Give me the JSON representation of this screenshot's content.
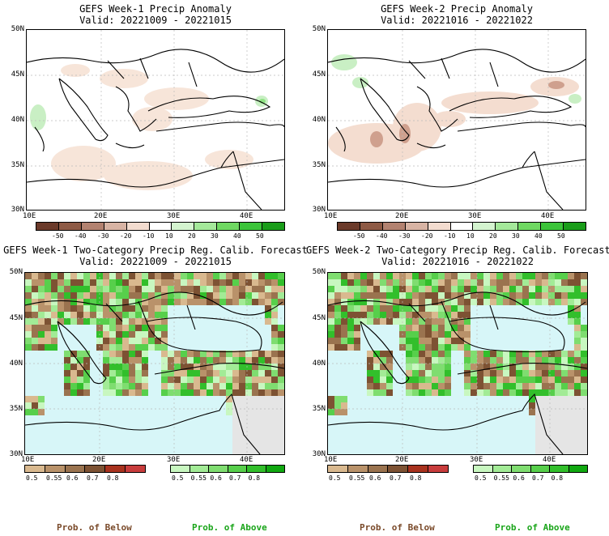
{
  "panels": {
    "top_left": {
      "title_line1": "GEFS Week-1 Precip Anomaly",
      "title_line2": "Valid: 20221009 - 20221015"
    },
    "top_right": {
      "title_line1": "GEFS Week-2 Precip Anomaly",
      "title_line2": "Valid: 20221016 - 20221022"
    },
    "bottom_left": {
      "title_line1": "GEFS Week-1 Two-Category Precip Reg. Calib. Forecast",
      "title_line2": "Valid: 20221009 - 20221015"
    },
    "bottom_right": {
      "title_line1": "GEFS Week-2 Two-Category Precip Reg. Calib. Forecast",
      "title_line2": "Valid: 20221016 - 20221022"
    }
  },
  "axes": {
    "lat_labels": [
      "50N",
      "45N",
      "40N",
      "35N",
      "30N"
    ],
    "lon_labels": [
      "10E",
      "20E",
      "30E",
      "40E"
    ]
  },
  "anomaly_colorbar": {
    "labels": [
      "-50",
      "-40",
      "-30",
      "-20",
      "-10",
      "10",
      "20",
      "30",
      "40",
      "50"
    ],
    "colors": [
      "#6b3a2a",
      "#8e5a45",
      "#b38270",
      "#d8b4a4",
      "#f3dccf",
      "#ffffff",
      "#d4f4cf",
      "#a4e89a",
      "#6fd862",
      "#3cc43a",
      "#1a9d1a"
    ]
  },
  "below_colorbar": {
    "labels": [
      "0.5",
      "0.55",
      "0.6",
      "0.7",
      "0.8"
    ],
    "colors": [
      "#d9b98f",
      "#b9926a",
      "#9a734f",
      "#7d5233",
      "#a8321e",
      "#c83c3c"
    ]
  },
  "above_colorbar": {
    "labels": [
      "0.5",
      "0.55",
      "0.6",
      "0.7",
      "0.8"
    ],
    "colors": [
      "#c8f7c0",
      "#a2eb96",
      "#7fdd70",
      "#57cf4b",
      "#32bf2b",
      "#10a810"
    ]
  },
  "legend": {
    "below_label": "Prob. of Below",
    "above_label": "Prob. of Above",
    "below_color": "#7a4a2a",
    "above_color": "#1aa51a"
  },
  "map_colors": {
    "sea": "#d7f6f8",
    "land_nodata": "#e5e5e5",
    "anomaly_bg": "#ffffff"
  }
}
